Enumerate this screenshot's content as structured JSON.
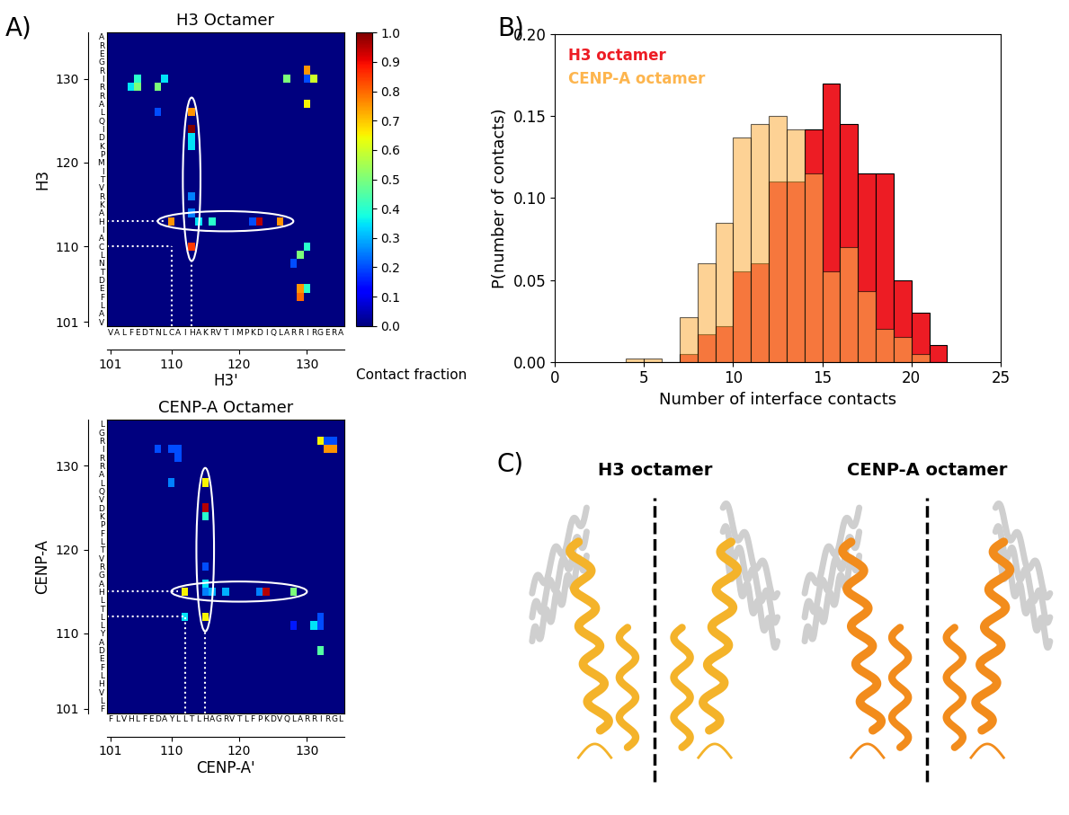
{
  "panel_labels": [
    "A)",
    "B)",
    "C)"
  ],
  "chart_data": [
    {
      "type": "heatmap",
      "title": "H3 Octamer",
      "x_label": "H3'",
      "y_label": "H3",
      "sequence_start": 101,
      "x_sequence": "VALFEDTNLCAIHAKRVTIMPKDIQLARRIRGERA",
      "y_sequence": "VALFEDTNLCAIHAKRVTIMPKDIQLARRIRGERA",
      "xlim": [
        100.5,
        135.5
      ],
      "ylim": [
        100.5,
        135.5
      ],
      "xticks": [
        101,
        110,
        120,
        130
      ],
      "yticks": [
        101,
        110,
        120,
        130
      ],
      "highlight_residues": [
        110,
        113
      ],
      "cells": [
        [
          104,
          129,
          0.35
        ],
        [
          105,
          129,
          0.5
        ],
        [
          105,
          130,
          0.4
        ],
        [
          108,
          129,
          0.5
        ],
        [
          109,
          130,
          0.35
        ],
        [
          108,
          126,
          0.2
        ],
        [
          127,
          130,
          0.5
        ],
        [
          130,
          131,
          0.75
        ],
        [
          130,
          130,
          0.2
        ],
        [
          131,
          130,
          0.6
        ],
        [
          130,
          127,
          0.65
        ],
        [
          113,
          126,
          0.75
        ],
        [
          113,
          124,
          1.0
        ],
        [
          113,
          123,
          0.35
        ],
        [
          113,
          122,
          0.35
        ],
        [
          113,
          116,
          0.25
        ],
        [
          113,
          114,
          0.25
        ],
        [
          113,
          110,
          0.85
        ],
        [
          110,
          113,
          0.75
        ],
        [
          114,
          113,
          0.35
        ],
        [
          116,
          113,
          0.4
        ],
        [
          122,
          113,
          0.2
        ],
        [
          123,
          113,
          0.95
        ],
        [
          126,
          113,
          0.75
        ],
        [
          130,
          110,
          0.4
        ],
        [
          129,
          109,
          0.5
        ],
        [
          128,
          108,
          0.2
        ],
        [
          129,
          105,
          0.75
        ],
        [
          129,
          104,
          0.8
        ],
        [
          130,
          105,
          0.4
        ]
      ],
      "colorbar": {
        "label": "Contact fraction",
        "range": [
          0.0,
          1.0
        ],
        "ticks": [
          0.0,
          0.1,
          0.2,
          0.3,
          0.4,
          0.5,
          0.6,
          0.7,
          0.8,
          0.9,
          1.0
        ]
      }
    },
    {
      "type": "heatmap",
      "title": "CENP-A Octamer",
      "x_label": "CENP-A'",
      "y_label": "CENP-A",
      "sequence_start": 101,
      "x_sequence": "FLVHLFEDAYLLTLHAGRVTLFPKDVQLARRIRGL",
      "y_sequence": "FLVHLFEDAYLLTLHAGRVTLFPKDVQLARRIRGL",
      "xlim": [
        100.5,
        135.5
      ],
      "ylim": [
        100.5,
        135.5
      ],
      "xticks": [
        101,
        110,
        120,
        130
      ],
      "yticks": [
        101,
        110,
        120,
        130
      ],
      "highlight_residues": [
        112,
        115
      ],
      "cells": [
        [
          115,
          128,
          0.65
        ],
        [
          115,
          125,
          0.95
        ],
        [
          115,
          124,
          0.4
        ],
        [
          115,
          118,
          0.2
        ],
        [
          115,
          116,
          0.35
        ],
        [
          115,
          115,
          0.25
        ],
        [
          115,
          112,
          0.65
        ],
        [
          112,
          115,
          0.65
        ],
        [
          116,
          115,
          0.3
        ],
        [
          118,
          115,
          0.3
        ],
        [
          123,
          115,
          0.25
        ],
        [
          124,
          115,
          0.95
        ],
        [
          128,
          115,
          0.5
        ],
        [
          112,
          112,
          0.35
        ],
        [
          108,
          132,
          0.2
        ],
        [
          110,
          132,
          0.2
        ],
        [
          111,
          131,
          0.2
        ],
        [
          111,
          132,
          0.2
        ],
        [
          110,
          128,
          0.25
        ],
        [
          132,
          133,
          0.65
        ],
        [
          133,
          132,
          0.75
        ],
        [
          134,
          132,
          0.75
        ],
        [
          133,
          133,
          0.2
        ],
        [
          134,
          133,
          0.2
        ],
        [
          128,
          111,
          0.15
        ],
        [
          131,
          111,
          0.35
        ],
        [
          132,
          112,
          0.2
        ],
        [
          132,
          111,
          0.2
        ],
        [
          132,
          108,
          0.45
        ]
      ]
    },
    {
      "type": "histogram",
      "x_label": "Number of interface contacts",
      "y_label": "P(number of contacts)",
      "bins": [
        4,
        5,
        6,
        7,
        8,
        9,
        10,
        11,
        12,
        13,
        14,
        15,
        16,
        17,
        18,
        19,
        20,
        21,
        22
      ],
      "series": [
        {
          "name": "H3 octamer",
          "color": "#ed1c24",
          "values": [
            0.0,
            0.0,
            0.0,
            0.005,
            0.017,
            0.022,
            0.055,
            0.06,
            0.11,
            0.11,
            0.142,
            0.17,
            0.145,
            0.115,
            0.115,
            0.05,
            0.03,
            0.01
          ]
        },
        {
          "name": "CENP-A octamer",
          "color": "#fdb54e",
          "values": [
            0.002,
            0.002,
            0.0,
            0.027,
            0.06,
            0.085,
            0.137,
            0.145,
            0.15,
            0.142,
            0.115,
            0.055,
            0.07,
            0.043,
            0.02,
            0.015,
            0.005,
            0.0
          ]
        }
      ],
      "xlim": [
        0,
        25
      ],
      "ylim": [
        0.0,
        0.2
      ],
      "xticks": [
        0,
        5,
        10,
        15,
        20,
        25
      ],
      "yticks": [
        {
          "value": 0.0,
          "label": "0.00"
        },
        {
          "value": 0.05,
          "label": "0.05"
        },
        {
          "value": 0.1,
          "label": "0.10"
        },
        {
          "value": 0.15,
          "label": "0.15"
        },
        {
          "value": 0.2,
          "label": "0.20"
        }
      ],
      "legend": "upper left"
    }
  ],
  "panel_c": {
    "titles": [
      "H3 octamer",
      "CENP-A octamer"
    ]
  }
}
